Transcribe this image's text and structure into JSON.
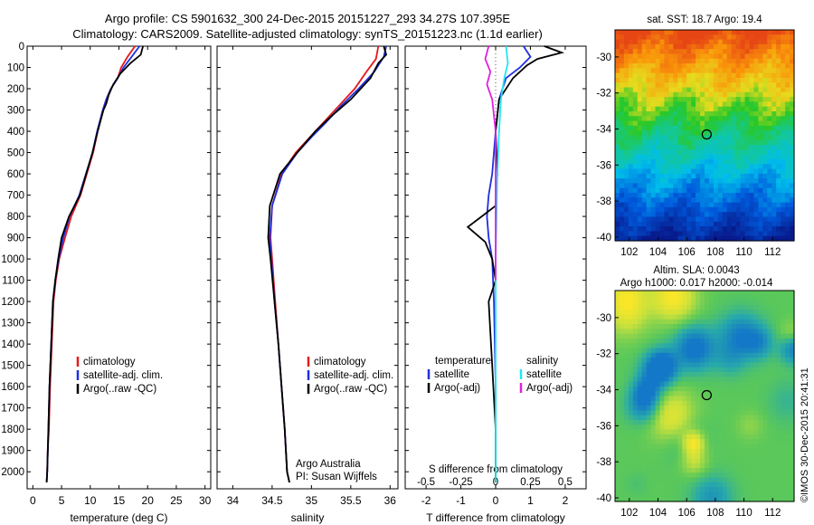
{
  "header": {
    "line1": "Argo profile: CS 5901632_300 24-Dec-2015 20151227_293 34.27S 107.395E",
    "line2": "Climatology: CARS2009. Satellite-adjusted climatology: synTS_20151223.nc (1.1d earlier)"
  },
  "side_stamp": "©IMOS 30-Dec-2015 20:41:31",
  "colors": {
    "climatology": "#e41a1c",
    "satellite": "#1f2fe0",
    "argo": "#000000",
    "sal_satellite": "#22e6f0",
    "sal_argo": "#e020e0"
  },
  "chart_data": [
    {
      "type": "line",
      "panel": "temperature",
      "xlabel": "temperature (deg C)",
      "ylabel": "",
      "xlim": [
        -1,
        31
      ],
      "ylim": [
        2080,
        0
      ],
      "xticks": [
        0,
        5,
        10,
        15,
        20,
        25,
        30
      ],
      "yticks": [
        0,
        100,
        200,
        300,
        400,
        500,
        600,
        700,
        800,
        900,
        1000,
        1100,
        1200,
        1300,
        1400,
        1500,
        1600,
        1700,
        1800,
        1900,
        2000
      ],
      "legend": [
        "climatology",
        "satellite-adj. clim.",
        "Argo(..raw -QC)"
      ],
      "legend_colors": [
        "#e41a1c",
        "#1f2fe0",
        "#000000"
      ],
      "annotation": [],
      "series": [
        {
          "name": "climatology",
          "color": "#e41a1c",
          "x": [
            17.8,
            16.5,
            15.4,
            14.8,
            13.6,
            12.8,
            12.2,
            11.3,
            10.5,
            8.3,
            6.7,
            5.6,
            4.6,
            4.0,
            3.6,
            3.3,
            3.0,
            2.8,
            2.6,
            2.5,
            2.4
          ],
          "y": [
            0,
            50,
            100,
            150,
            200,
            250,
            300,
            400,
            500,
            700,
            800,
            900,
            1000,
            1100,
            1200,
            1400,
            1600,
            1800,
            1900,
            2000,
            2050
          ]
        },
        {
          "name": "satellite-adj. clim.",
          "color": "#1f2fe0",
          "x": [
            18.6,
            17.2,
            15.8,
            14.8,
            13.6,
            12.8,
            12.2,
            11.2,
            10.4,
            8.1,
            6.4,
            5.3,
            4.5,
            3.9,
            3.5,
            3.2,
            2.9,
            2.7,
            2.5,
            2.4
          ],
          "y": [
            0,
            50,
            100,
            150,
            200,
            250,
            300,
            400,
            500,
            700,
            800,
            900,
            1000,
            1100,
            1200,
            1400,
            1600,
            1800,
            2000,
            2050
          ]
        },
        {
          "name": "Argo(..raw -QC)",
          "color": "#000000",
          "x": [
            19.2,
            18.8,
            17.0,
            15.2,
            14.0,
            13.2,
            12.8,
            12.3,
            11.3,
            10.4,
            8.2,
            6.3,
            5.0,
            4.4,
            3.9,
            3.5,
            3.2,
            2.9,
            2.7,
            2.5,
            2.4
          ],
          "y": [
            0,
            40,
            80,
            130,
            180,
            230,
            270,
            300,
            400,
            500,
            700,
            800,
            900,
            1000,
            1100,
            1200,
            1400,
            1600,
            1800,
            2000,
            2050
          ]
        }
      ]
    },
    {
      "type": "line",
      "panel": "salinity",
      "xlabel": "salinity",
      "ylabel": "",
      "xlim": [
        33.8,
        36.1
      ],
      "ylim": [
        2080,
        0
      ],
      "xticks": [
        34,
        34.5,
        35,
        35.5,
        36
      ],
      "yticks": [],
      "legend": [
        "climatology",
        "satellite-adj. clim.",
        "Argo(..raw -QC)"
      ],
      "legend_colors": [
        "#e41a1c",
        "#1f2fe0",
        "#000000"
      ],
      "annotation": [
        "Argo Australia",
        "PI: Susan Wijffels"
      ],
      "series": [
        {
          "name": "climatology",
          "color": "#e41a1c",
          "x": [
            35.85,
            35.82,
            35.7,
            35.55,
            35.35,
            35.15,
            35.0,
            34.8,
            34.62,
            34.5,
            34.48,
            34.5,
            34.54,
            34.58,
            34.62,
            34.66,
            34.69,
            34.72
          ],
          "y": [
            0,
            60,
            120,
            200,
            280,
            360,
            420,
            500,
            600,
            750,
            900,
            1000,
            1200,
            1400,
            1600,
            1800,
            2000,
            2050
          ]
        },
        {
          "name": "satellite-adj. clim.",
          "color": "#1f2fe0",
          "x": [
            35.95,
            35.92,
            35.8,
            35.6,
            35.38,
            35.18,
            35.02,
            34.82,
            34.63,
            34.5,
            34.47,
            34.49,
            34.53,
            34.58,
            34.62,
            34.66,
            34.69,
            34.72
          ],
          "y": [
            0,
            50,
            120,
            200,
            280,
            360,
            420,
            500,
            600,
            750,
            900,
            1000,
            1200,
            1400,
            1600,
            1800,
            2000,
            2050
          ]
        },
        {
          "name": "Argo(..raw -QC)",
          "color": "#000000",
          "x": [
            35.92,
            35.95,
            35.85,
            35.75,
            35.5,
            35.25,
            35.05,
            34.82,
            34.6,
            34.47,
            34.45,
            34.48,
            34.53,
            34.58,
            34.62,
            34.66,
            34.69,
            34.72
          ],
          "y": [
            0,
            40,
            80,
            150,
            250,
            330,
            400,
            500,
            600,
            750,
            900,
            1000,
            1200,
            1400,
            1600,
            1800,
            2000,
            2050
          ]
        }
      ]
    },
    {
      "type": "line",
      "panel": "difference",
      "xlabel": "T difference from climatology",
      "xlabel_top": "S difference from climatology",
      "xlim": [
        -2.6,
        2.6
      ],
      "ylim": [
        2080,
        0
      ],
      "xticks": [
        -2,
        -1,
        0,
        1,
        2
      ],
      "xticklabels": [
        "-2",
        "-1",
        "0",
        "1",
        "2"
      ],
      "sticks": [
        -0.5,
        -0.25,
        0,
        0.25,
        0.5
      ],
      "sticklabels": [
        "-0.5",
        "-0.25",
        "0",
        "0.25",
        "0.5"
      ],
      "legend_headers": [
        "temperature",
        "salinity"
      ],
      "legend": [
        "satellite",
        "Argo(-adj)",
        "satellite",
        "Argo(-adj)"
      ],
      "legend_colors": [
        "#1f2fe0",
        "#000000",
        "#22e6f0",
        "#e020e0"
      ],
      "series": [
        {
          "name": "satellite",
          "color": "#1f2fe0",
          "x": [
            0.8,
            1.0,
            0.7,
            0.3,
            0.1,
            0.0,
            -0.05,
            -0.1,
            -0.2,
            -0.25,
            -0.2,
            -0.1,
            -0.05,
            0.0,
            0.0
          ],
          "y": [
            0,
            50,
            100,
            150,
            250,
            400,
            500,
            600,
            700,
            800,
            900,
            1000,
            1200,
            1600,
            2050
          ]
        },
        {
          "name": "Argo(-adj)",
          "color": "#000000",
          "x": [
            1.4,
            1.9,
            1.2,
            0.9,
            0.5,
            0.1,
            0.0,
            0.05,
            0.0,
            -0.4,
            -0.8,
            -0.3,
            -0.1,
            0.0,
            -0.2,
            -0.1,
            0.0,
            0.0
          ],
          "y": [
            0,
            30,
            60,
            90,
            150,
            250,
            400,
            600,
            750,
            800,
            850,
            920,
            1000,
            1100,
            1200,
            1500,
            1800,
            2050
          ]
        },
        {
          "name": "satellite",
          "color": "#22e6f0",
          "x": [
            0.3,
            0.35,
            0.25,
            0.15,
            0.1,
            0.05,
            0.0,
            0.0
          ],
          "y": [
            0,
            80,
            150,
            250,
            400,
            600,
            1000,
            2050
          ]
        },
        {
          "name": "Argo(-adj)",
          "color": "#e020e0",
          "x": [
            -0.2,
            -0.3,
            -0.15,
            -0.25,
            -0.1,
            0.0,
            0.0,
            0.0
          ],
          "y": [
            0,
            60,
            120,
            180,
            250,
            400,
            700,
            1100
          ]
        }
      ]
    },
    {
      "type": "heatmap",
      "panel": "sst_map",
      "title": "sat. SST: 18.7 Argo: 19.4",
      "xlim": [
        101,
        113.5
      ],
      "ylim": [
        -40.2,
        -28.5
      ],
      "xticks": [
        102,
        104,
        106,
        108,
        110,
        112
      ],
      "yticks": [
        -30,
        -32,
        -34,
        -36,
        -38,
        -40
      ],
      "marker": [
        107.4,
        -34.3
      ]
    },
    {
      "type": "heatmap",
      "panel": "sla_map",
      "title_lines": [
        "Altim. SLA: 0.0043",
        "Argo h1000: 0.017 h2000: -0.014"
      ],
      "xlim": [
        101,
        113.5
      ],
      "ylim": [
        -40.2,
        -28.5
      ],
      "xticks": [
        102,
        104,
        106,
        108,
        110,
        112
      ],
      "yticks": [
        -30,
        -32,
        -34,
        -36,
        -38,
        -40
      ],
      "marker": [
        107.4,
        -34.3
      ]
    }
  ]
}
